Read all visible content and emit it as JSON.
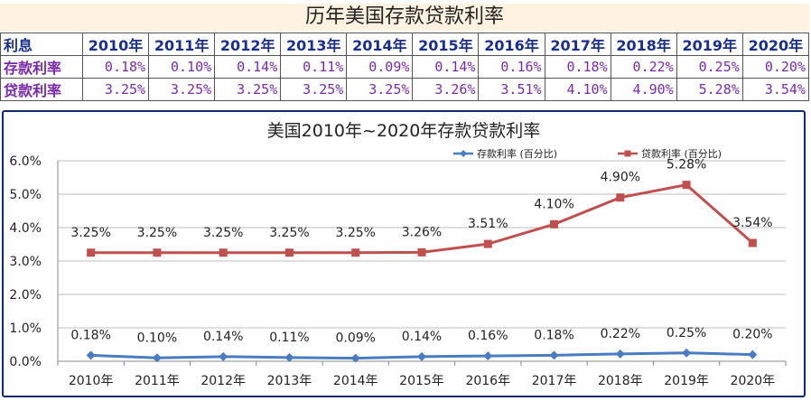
{
  "table": {
    "title": "历年美国存款贷款利率",
    "corner_label": "利息",
    "years": [
      "2010年",
      "2011年",
      "2012年",
      "2013年",
      "2014年",
      "2015年",
      "2016年",
      "2017年",
      "2018年",
      "2019年",
      "2020年"
    ],
    "rows": [
      {
        "label": "存款利率",
        "cells": [
          "0.18%",
          "0.10%",
          "0.14%",
          "0.11%",
          "0.09%",
          "0.14%",
          "0.16%",
          "0.18%",
          "0.22%",
          "0.25%",
          "0.20%"
        ]
      },
      {
        "label": "贷款利率",
        "cells": [
          "3.25%",
          "3.25%",
          "3.25%",
          "3.25%",
          "3.25%",
          "3.26%",
          "3.51%",
          "4.10%",
          "4.90%",
          "5.28%",
          "3.54%"
        ]
      }
    ]
  },
  "chart_data": {
    "type": "line",
    "title": "美国2010年~2020年存款贷款利率",
    "categories": [
      "2010年",
      "2011年",
      "2012年",
      "2013年",
      "2014年",
      "2015年",
      "2016年",
      "2017年",
      "2018年",
      "2019年",
      "2020年"
    ],
    "ylim": [
      0,
      6.0
    ],
    "yticks": [
      "0.0%",
      "1.0%",
      "2.0%",
      "3.0%",
      "4.0%",
      "5.0%",
      "6.0%"
    ],
    "grid": true,
    "legend_position": "top-right",
    "series": [
      {
        "name": "存款利率 (百分比)",
        "color": "#4a7cc2",
        "marker": "diamond",
        "values": [
          0.18,
          0.1,
          0.14,
          0.11,
          0.09,
          0.14,
          0.16,
          0.18,
          0.22,
          0.25,
          0.2
        ],
        "labels": [
          "0.18%",
          "0.10%",
          "0.14%",
          "0.11%",
          "0.09%",
          "0.14%",
          "0.16%",
          "0.18%",
          "0.22%",
          "0.25%",
          "0.20%"
        ]
      },
      {
        "name": "贷款利率 (百分比)",
        "color": "#c0504d",
        "marker": "square",
        "values": [
          3.25,
          3.25,
          3.25,
          3.25,
          3.25,
          3.26,
          3.51,
          4.1,
          4.9,
          5.28,
          3.54
        ],
        "labels": [
          "3.25%",
          "3.25%",
          "3.25%",
          "3.25%",
          "3.25%",
          "3.26%",
          "3.51%",
          "4.10%",
          "4.90%",
          "5.28%",
          "3.54%"
        ]
      }
    ]
  }
}
